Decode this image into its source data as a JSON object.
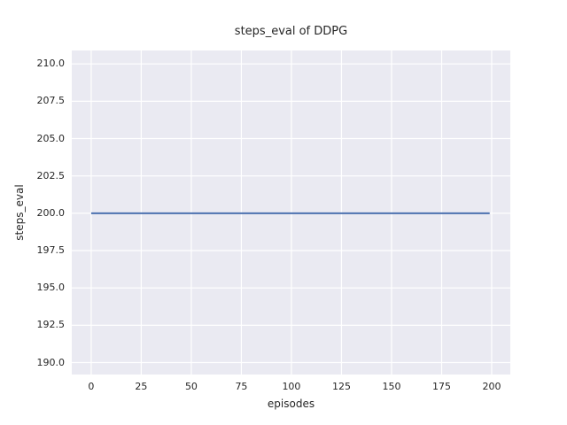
{
  "chart_data": {
    "type": "line",
    "title": "steps_eval of DDPG",
    "xlabel": "episodes",
    "ylabel": "steps_eval",
    "xlim": [
      -9.7,
      209.3
    ],
    "ylim": [
      189.2,
      210.9
    ],
    "xticks": [
      0,
      25,
      50,
      75,
      100,
      125,
      150,
      175,
      200
    ],
    "xtick_labels": [
      "0",
      "25",
      "50",
      "75",
      "100",
      "125",
      "150",
      "175",
      "200"
    ],
    "yticks": [
      190.0,
      192.5,
      195.0,
      197.5,
      200.0,
      202.5,
      205.0,
      207.5,
      210.0
    ],
    "ytick_labels": [
      "190.0",
      "192.5",
      "195.0",
      "197.5",
      "200.0",
      "202.5",
      "205.0",
      "207.5",
      "210.0"
    ],
    "grid": true,
    "legend_position": "none",
    "plot_background_color": "#eaeaf2",
    "grid_color": "#ffffff",
    "text_color": "#262626",
    "series": [
      {
        "name": "steps_eval",
        "color": "#4c72b0",
        "x": [
          0,
          199
        ],
        "y": [
          200,
          200
        ],
        "note": "constant value 200 across all episodes"
      }
    ]
  }
}
